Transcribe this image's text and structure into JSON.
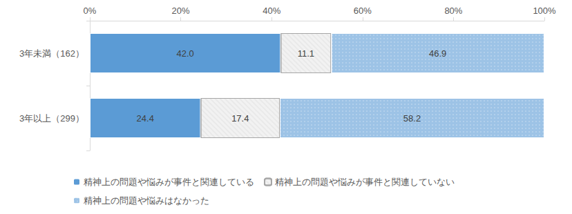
{
  "chart_data": {
    "type": "bar",
    "orientation": "horizontal",
    "stacked": true,
    "data_labels": true,
    "grid": false,
    "legend": "bottom",
    "categories": [
      "3年未満（162）",
      "3年以上（299）"
    ],
    "xlim": [
      0,
      100
    ],
    "xticks": [
      {
        "value": 0,
        "label": "0%"
      },
      {
        "value": 20,
        "label": "20%"
      },
      {
        "value": 40,
        "label": "40%"
      },
      {
        "value": 60,
        "label": "60%"
      },
      {
        "value": 80,
        "label": "80%"
      },
      {
        "value": 100,
        "label": "100%"
      }
    ],
    "series": [
      {
        "name": "精神上の問題や悩みが事件と関連している",
        "color": "#5b9bd5",
        "values": [
          42.0,
          24.4
        ],
        "value_labels": [
          "42.0",
          "24.4"
        ]
      },
      {
        "name": "精神上の問題や悩みが事件と関連していない",
        "color": "#f2f2f2",
        "values": [
          11.1,
          17.4
        ],
        "value_labels": [
          "11.1",
          "17.4"
        ]
      },
      {
        "name": "精神上の問題や悩みはなかった",
        "color": "#9dc3e6",
        "values": [
          46.9,
          58.2
        ],
        "value_labels": [
          "46.9",
          "58.2"
        ]
      }
    ]
  }
}
